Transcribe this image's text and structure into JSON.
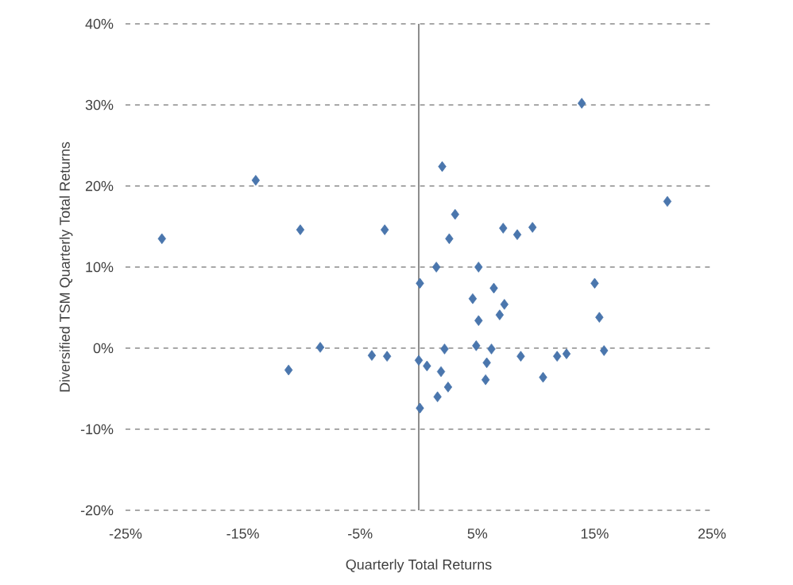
{
  "chart_data": {
    "type": "scatter",
    "xlabel": "Quarterly Total Returns",
    "ylabel": "Diversified TSM Quarterly Total Returns",
    "x": [
      -13.9,
      2.0,
      13.9,
      21.2,
      3.1,
      -10.1,
      -2.9,
      7.2,
      8.4,
      9.7,
      -21.9,
      2.6,
      0.1,
      1.5,
      5.1,
      6.4,
      7.3,
      4.6,
      15.0,
      -8.4,
      -11.1,
      -4.0,
      -2.7,
      0.0,
      0.7,
      1.9,
      2.5,
      1.6,
      0.1,
      5.7,
      5.8,
      6.2,
      4.9,
      10.6,
      8.7,
      11.8,
      12.6,
      15.8,
      2.2,
      15.4,
      6.9,
      5.1
    ],
    "values": [
      20.7,
      22.4,
      30.2,
      18.1,
      16.5,
      14.6,
      14.6,
      14.8,
      14.0,
      14.9,
      13.5,
      13.5,
      8.0,
      10.0,
      10.0,
      7.4,
      5.4,
      6.1,
      8.0,
      0.1,
      -2.7,
      -0.9,
      -1.0,
      -1.5,
      -2.2,
      -2.9,
      -4.8,
      -6.0,
      -7.4,
      -3.9,
      -1.8,
      -0.1,
      0.3,
      -3.6,
      -1.0,
      -1.0,
      -0.7,
      -0.3,
      -0.1,
      3.8,
      4.1,
      3.4
    ],
    "color": "#4a76ad",
    "marker": "diamond",
    "grid": "y",
    "xlim": [
      -25,
      25
    ],
    "ylim": [
      -20,
      40
    ],
    "xticks": [
      {
        "value": -25,
        "label": "-25%"
      },
      {
        "value": -15,
        "label": "-15%"
      },
      {
        "value": -5,
        "label": "-5%"
      },
      {
        "value": 5,
        "label": "5%"
      },
      {
        "value": 15,
        "label": "15%"
      },
      {
        "value": 25,
        "label": "25%"
      }
    ],
    "yticks": [
      {
        "value": -20,
        "label": "-20%"
      },
      {
        "value": -10,
        "label": "-10%"
      },
      {
        "value": 0,
        "label": "0%"
      },
      {
        "value": 10,
        "label": "10%"
      },
      {
        "value": 20,
        "label": "20%"
      },
      {
        "value": 30,
        "label": "30%"
      },
      {
        "value": 40,
        "label": "40%"
      }
    ],
    "ref_lines": [
      {
        "axis": "x",
        "value": 0,
        "color": "#808080"
      }
    ]
  }
}
